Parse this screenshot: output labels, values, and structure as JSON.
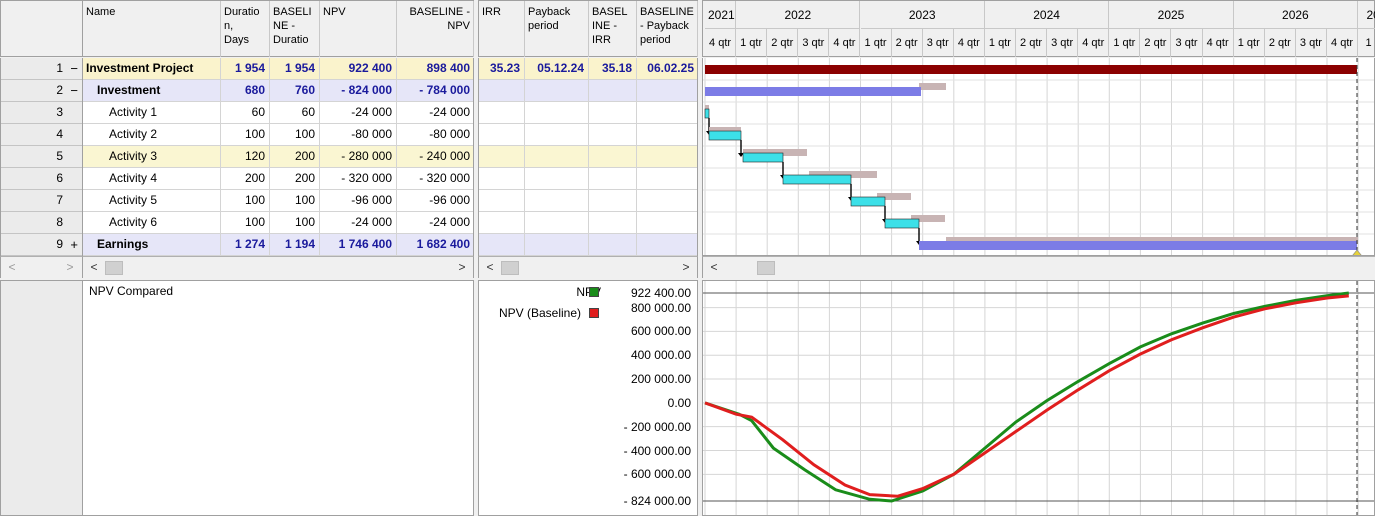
{
  "table": {
    "headers": {
      "name": "Name",
      "duration": "Duratio\nn,\nDays",
      "baseline_duration": "BASELI\nNE -\nDuratio",
      "npv": "NPV",
      "baseline_npv": "BASELINE -\nNPV",
      "irr": "IRR",
      "payback": "Payback\nperiod",
      "baseline_irr": "BASEL\nINE -\nIRR",
      "baseline_payback": "BASELINE\n- Payback\nperiod"
    },
    "rows": [
      {
        "num": "1",
        "tree": "−",
        "name": "Investment Project",
        "duration": "1 954",
        "baseline_duration": "1 954",
        "npv": "922 400",
        "baseline_npv": "898 400",
        "irr": "35.23",
        "payback": "05.12.24",
        "baseline_irr": "35.18",
        "baseline_payback": "06.02.25"
      },
      {
        "num": "2",
        "tree": "−",
        "name": "Investment",
        "duration": "680",
        "baseline_duration": "760",
        "npv": "- 824 000",
        "baseline_npv": "- 784 000",
        "irr": "",
        "payback": "",
        "baseline_irr": "",
        "baseline_payback": ""
      },
      {
        "num": "3",
        "tree": "",
        "name": "Activity 1",
        "duration": "60",
        "baseline_duration": "60",
        "npv": "-24 000",
        "baseline_npv": "-24 000",
        "irr": "",
        "payback": "",
        "baseline_irr": "",
        "baseline_payback": ""
      },
      {
        "num": "4",
        "tree": "",
        "name": "Activity 2",
        "duration": "100",
        "baseline_duration": "100",
        "npv": "-80 000",
        "baseline_npv": "-80 000",
        "irr": "",
        "payback": "",
        "baseline_irr": "",
        "baseline_payback": ""
      },
      {
        "num": "5",
        "tree": "",
        "name": "Activity 3",
        "duration": "120",
        "baseline_duration": "200",
        "npv": "- 280 000",
        "baseline_npv": "- 240 000",
        "irr": "",
        "payback": "",
        "baseline_irr": "",
        "baseline_payback": ""
      },
      {
        "num": "6",
        "tree": "",
        "name": "Activity 4",
        "duration": "200",
        "baseline_duration": "200",
        "npv": "- 320 000",
        "baseline_npv": "- 320 000",
        "irr": "",
        "payback": "",
        "baseline_irr": "",
        "baseline_payback": ""
      },
      {
        "num": "7",
        "tree": "",
        "name": "Activity 5",
        "duration": "100",
        "baseline_duration": "100",
        "npv": "-96 000",
        "baseline_npv": "-96 000",
        "irr": "",
        "payback": "",
        "baseline_irr": "",
        "baseline_payback": ""
      },
      {
        "num": "8",
        "tree": "",
        "name": "Activity 6",
        "duration": "100",
        "baseline_duration": "100",
        "npv": "-24 000",
        "baseline_npv": "-24 000",
        "irr": "",
        "payback": "",
        "baseline_irr": "",
        "baseline_payback": ""
      },
      {
        "num": "9",
        "tree": "+",
        "name": "Earnings",
        "duration": "1 274",
        "baseline_duration": "1 194",
        "npv": "1 746 400",
        "baseline_npv": "1 682 400",
        "irr": "",
        "payback": "",
        "baseline_irr": "",
        "baseline_payback": ""
      }
    ]
  },
  "gantt": {
    "years": [
      "2021",
      "2022",
      "2023",
      "2024",
      "2025",
      "2026",
      "20"
    ],
    "quarters": [
      "4 qtr",
      "1 qtr",
      "2 qtr",
      "3 qtr",
      "4 qtr",
      "1 qtr",
      "2 qtr",
      "3 qtr",
      "4 qtr",
      "1 qtr",
      "2 qtr",
      "3 qtr",
      "4 qtr",
      "1 qtr",
      "2 qtr",
      "3 qtr",
      "4 qtr",
      "1 qtr",
      "2 qtr",
      "3 qtr",
      "4 qtr",
      "1 q"
    ]
  },
  "lower": {
    "panel_label": "NPV Compared",
    "legend": [
      {
        "label": "NPV",
        "color": "#1a8c1a"
      },
      {
        "label": "NPV (Baseline)",
        "color": "#e01e1e"
      }
    ]
  },
  "chart_data": {
    "type": "line",
    "y_tick_labels": [
      "922 400.00",
      "800 000.00",
      "600 000.00",
      "400 000.00",
      "200 000.00",
      "0.00",
      "- 200 000.00",
      "- 400 000.00",
      "- 600 000.00",
      "- 824 000.00"
    ],
    "ylim": [
      -824000,
      922400
    ],
    "x_unit": "quarter index from 2021 Q4",
    "series": [
      {
        "name": "NPV",
        "color": "#1a8c1a",
        "x": [
          0,
          1.1,
          1.5,
          2.2,
          3.2,
          4.2,
          5.3,
          6.0,
          7.0,
          8.0,
          9.0,
          10.0,
          11.0,
          12.0,
          13.0,
          14.0,
          15.0,
          16.0,
          17.0,
          18.0,
          19.0,
          20.0,
          20.7
        ],
        "y": [
          0,
          -95000,
          -150000,
          -380000,
          -560000,
          -730000,
          -810000,
          -824000,
          -740000,
          -600000,
          -380000,
          -160000,
          20000,
          180000,
          330000,
          470000,
          580000,
          670000,
          750000,
          810000,
          860000,
          900000,
          922400
        ]
      },
      {
        "name": "NPV (Baseline)",
        "color": "#e01e1e",
        "x": [
          0,
          1.0,
          1.5,
          2.5,
          3.5,
          4.5,
          5.3,
          6.2,
          7.0,
          8.0,
          9.0,
          10.0,
          11.0,
          12.0,
          13.0,
          14.0,
          15.0,
          16.0,
          17.0,
          18.0,
          19.0,
          20.0,
          20.7
        ],
        "y": [
          0,
          -95000,
          -120000,
          -310000,
          -520000,
          -690000,
          -770000,
          -784000,
          -720000,
          -600000,
          -420000,
          -240000,
          -60000,
          110000,
          270000,
          410000,
          530000,
          630000,
          720000,
          790000,
          840000,
          880000,
          898400
        ]
      }
    ]
  }
}
